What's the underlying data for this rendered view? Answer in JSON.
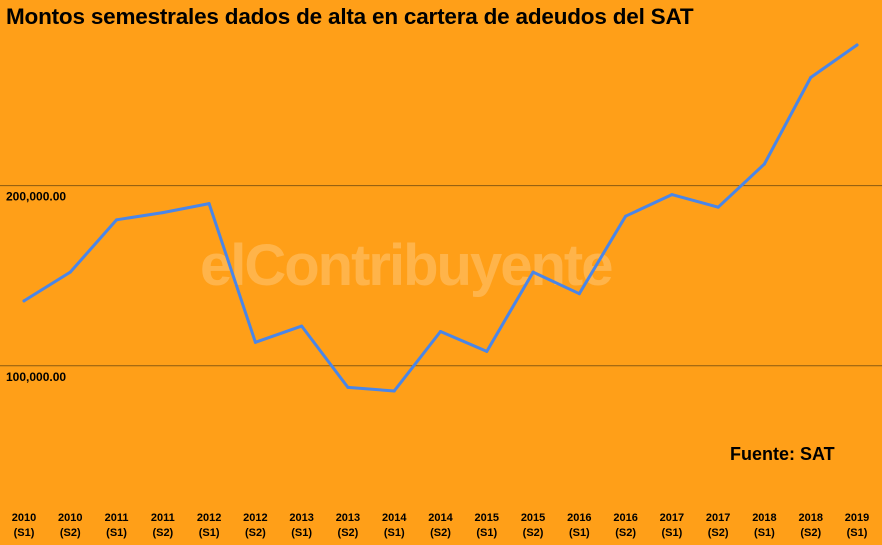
{
  "title": "Montos semestrales dados de alta en cartera de adeudos del SAT",
  "source_note": "Fuente: SAT",
  "watermark": "elContribuyente",
  "colors": {
    "background": "#FF9F18",
    "line": "#4A86E8",
    "gridline": "#8A5A10"
  },
  "chart_data": {
    "type": "line",
    "title": "Montos semestrales dados de alta en cartera de adeudos del SAT",
    "xlabel": "",
    "ylabel": "",
    "categories": [
      [
        "2010",
        "(S1)"
      ],
      [
        "2010",
        "(S2)"
      ],
      [
        "2011",
        "(S1)"
      ],
      [
        "2011",
        "(S2)"
      ],
      [
        "2012",
        "(S1)"
      ],
      [
        "2012",
        "(S2)"
      ],
      [
        "2013",
        "(S1)"
      ],
      [
        "2013",
        "(S2)"
      ],
      [
        "2014",
        "(S1)"
      ],
      [
        "2014",
        "(S2)"
      ],
      [
        "2015",
        "(S1)"
      ],
      [
        "2015",
        "(S2)"
      ],
      [
        "2016",
        "(S1)"
      ],
      [
        "2016",
        "(S2)"
      ],
      [
        "2017",
        "(S1)"
      ],
      [
        "2017",
        "(S2)"
      ],
      [
        "2018",
        "(S1)"
      ],
      [
        "2018",
        "(S2)"
      ],
      [
        "2019",
        "(S1)"
      ]
    ],
    "series": [
      {
        "values": [
          136000,
          152000,
          181000,
          185000,
          190000,
          113000,
          122000,
          88000,
          86000,
          119000,
          108000,
          152000,
          140000,
          183000,
          195000,
          188000,
          212000,
          260000,
          278000
        ]
      }
    ],
    "yticks": [
      {
        "value": 100000,
        "label": "100,000.00"
      },
      {
        "value": 200000,
        "label": "200,000.00"
      }
    ],
    "ylim": [
      25500,
      303000
    ],
    "grid": true,
    "legend": "none"
  }
}
